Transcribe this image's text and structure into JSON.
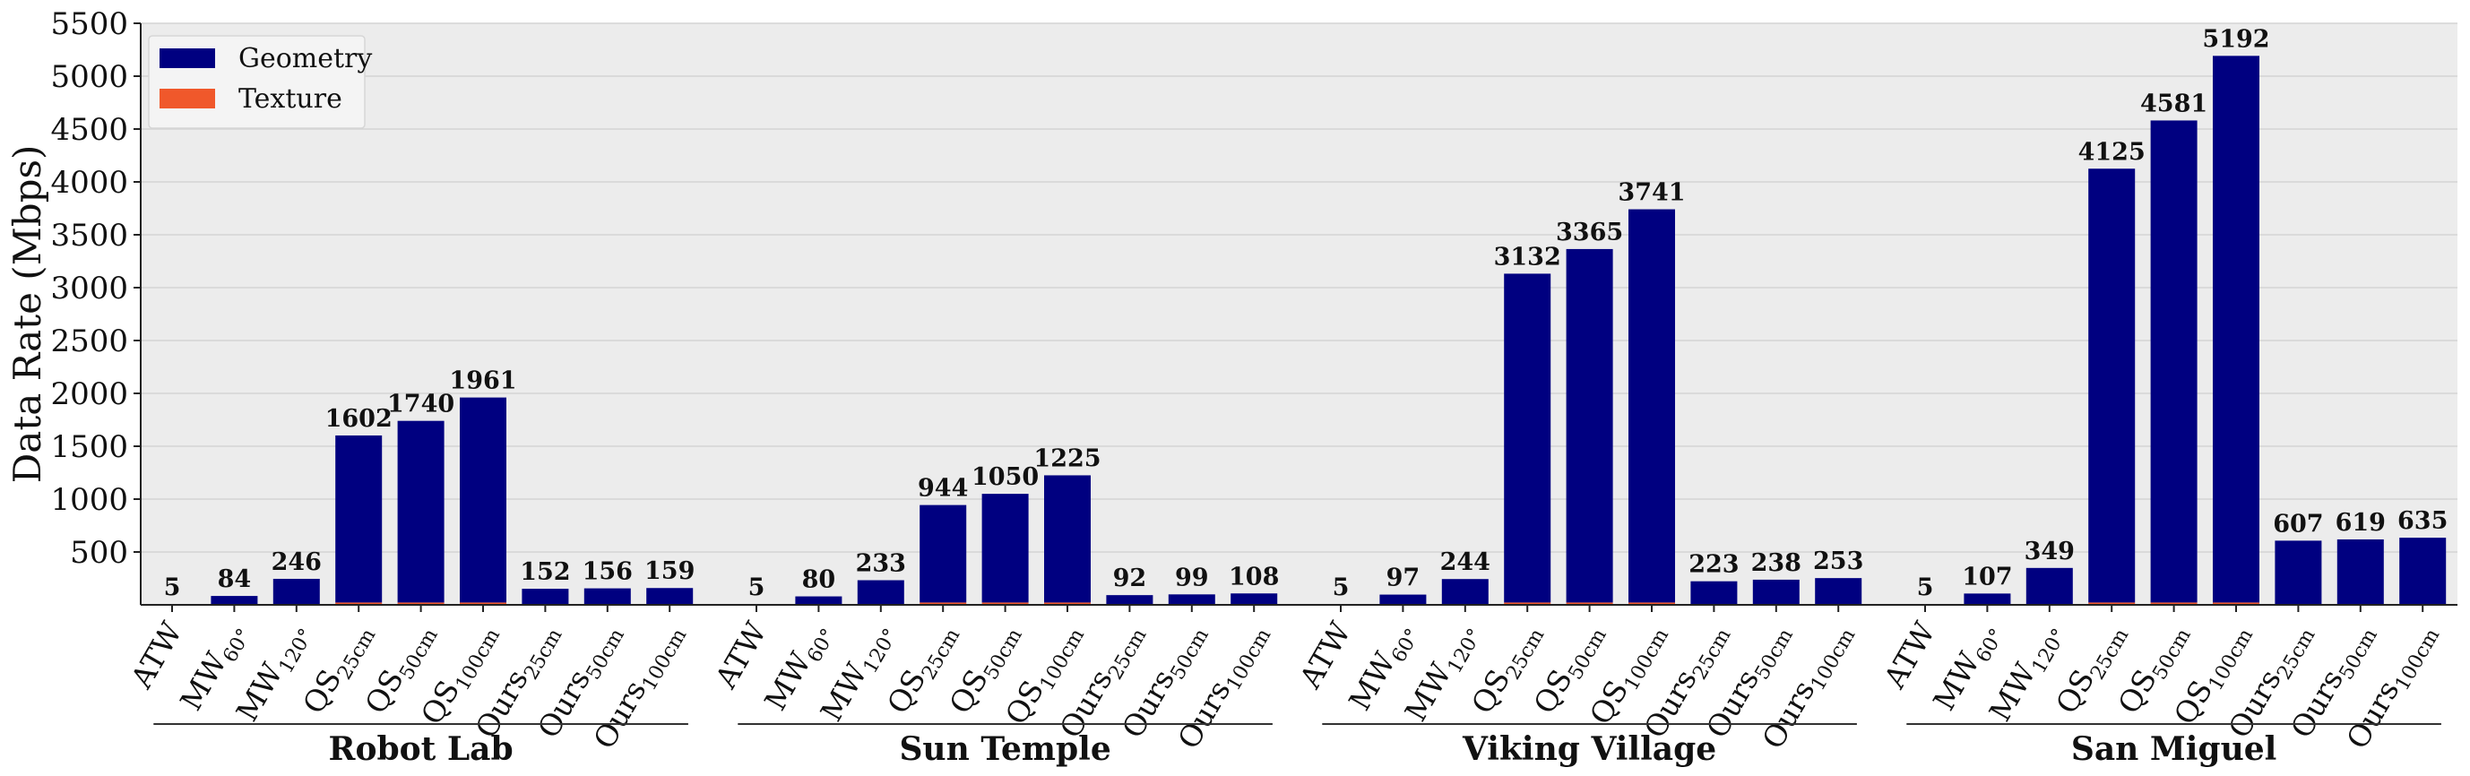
{
  "chart_data": {
    "type": "bar",
    "ylabel": "Data Rate (Mbps)",
    "ylim": [
      0,
      5500
    ],
    "yticks": [
      500,
      1000,
      1500,
      2000,
      2500,
      3000,
      3500,
      4000,
      4500,
      5000,
      5500
    ],
    "grid": true,
    "legend_position": "top-left",
    "colors": {
      "Geometry": "#000080",
      "Texture": "#f0582b",
      "background": "#ececec",
      "grid": "#d3d3d3"
    },
    "methods": [
      {
        "base": "ATW",
        "sub": ""
      },
      {
        "base": "MW",
        "sub": "60°"
      },
      {
        "base": "MW",
        "sub": "120°"
      },
      {
        "base": "QS",
        "sub": "25cm"
      },
      {
        "base": "QS",
        "sub": "50cm"
      },
      {
        "base": "QS",
        "sub": "100cm"
      },
      {
        "base": "Ours",
        "sub": "25cm"
      },
      {
        "base": "Ours",
        "sub": "50cm"
      },
      {
        "base": "Ours",
        "sub": "100cm"
      }
    ],
    "groups": [
      {
        "name": "Robot Lab",
        "labels": [
          "5",
          "84",
          "246",
          "1602",
          "1740",
          "1961",
          "152",
          "156",
          "159"
        ],
        "geometry": [
          0,
          84,
          246,
          1580,
          1718,
          1939,
          144,
          148,
          151
        ],
        "texture": [
          5,
          0,
          0,
          22,
          22,
          22,
          8,
          8,
          8
        ]
      },
      {
        "name": "Sun Temple",
        "labels": [
          "5",
          "80",
          "233",
          "944",
          "1050",
          "1225",
          "92",
          "99",
          "108"
        ],
        "geometry": [
          0,
          80,
          233,
          922,
          1028,
          1203,
          84,
          91,
          100
        ],
        "texture": [
          5,
          0,
          0,
          22,
          22,
          22,
          8,
          8,
          8
        ]
      },
      {
        "name": "Viking Village",
        "labels": [
          "5",
          "97",
          "244",
          "3132",
          "3365",
          "3741",
          "223",
          "238",
          "253"
        ],
        "geometry": [
          0,
          97,
          244,
          3110,
          3343,
          3719,
          215,
          230,
          245
        ],
        "texture": [
          5,
          0,
          0,
          22,
          22,
          22,
          8,
          8,
          8
        ]
      },
      {
        "name": "San Miguel",
        "labels": [
          "5",
          "107",
          "349",
          "4125",
          "4581",
          "5192",
          "607",
          "619",
          "635"
        ],
        "geometry": [
          0,
          107,
          349,
          4103,
          4559,
          5170,
          599,
          611,
          627
        ],
        "texture": [
          5,
          0,
          0,
          22,
          22,
          22,
          8,
          8,
          8
        ]
      }
    ],
    "series": [
      {
        "name": "Geometry"
      },
      {
        "name": "Texture"
      }
    ]
  }
}
